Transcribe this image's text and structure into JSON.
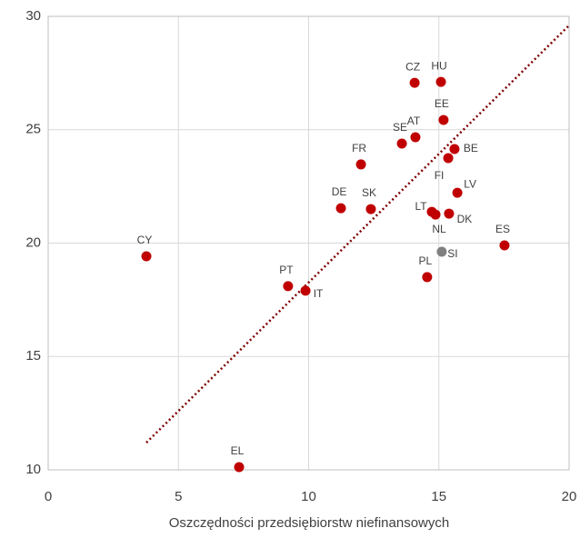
{
  "chart_data": {
    "type": "scatter",
    "x_label": "Oszczędności przedsiębiorstw niefinansowych",
    "labels": [
      "CY",
      "EL",
      "PT",
      "IT",
      "DE",
      "FR",
      "SK",
      "SE",
      "AT",
      "CZ",
      "HU",
      "EE",
      "BE",
      "FI",
      "LV",
      "LT",
      "NL",
      "DK",
      "SI",
      "PL",
      "ES"
    ],
    "x": [
      3.77,
      7.33,
      9.21,
      9.88,
      11.24,
      12.01,
      12.39,
      13.58,
      14.1,
      14.07,
      15.08,
      15.18,
      15.6,
      15.36,
      15.71,
      14.73,
      14.87,
      15.39,
      15.11,
      14.55,
      17.52
    ],
    "y": [
      19.42,
      10.12,
      18.1,
      17.9,
      21.54,
      23.47,
      21.5,
      24.39,
      24.67,
      27.07,
      27.11,
      25.43,
      24.15,
      23.75,
      22.22,
      21.38,
      21.26,
      21.3,
      19.62,
      18.5,
      19.9
    ],
    "colors": [
      "#c00000",
      "#c00000",
      "#c00000",
      "#c00000",
      "#c00000",
      "#c00000",
      "#c00000",
      "#c00000",
      "#c00000",
      "#c00000",
      "#c00000",
      "#c00000",
      "#c00000",
      "#c00000",
      "#c00000",
      "#c00000",
      "#c00000",
      "#c00000",
      "#808080",
      "#c00000",
      "#c00000"
    ],
    "trendline": {
      "x": [
        3.77,
        20
      ],
      "y": [
        11.2,
        29.6
      ],
      "color": "#7f0000"
    },
    "xlim": [
      0,
      20
    ],
    "xticks": [
      0,
      5,
      10,
      15,
      20
    ],
    "ylim": [
      10,
      30
    ],
    "yticks": [
      10,
      15,
      20,
      25,
      30
    ],
    "grid": true
  }
}
